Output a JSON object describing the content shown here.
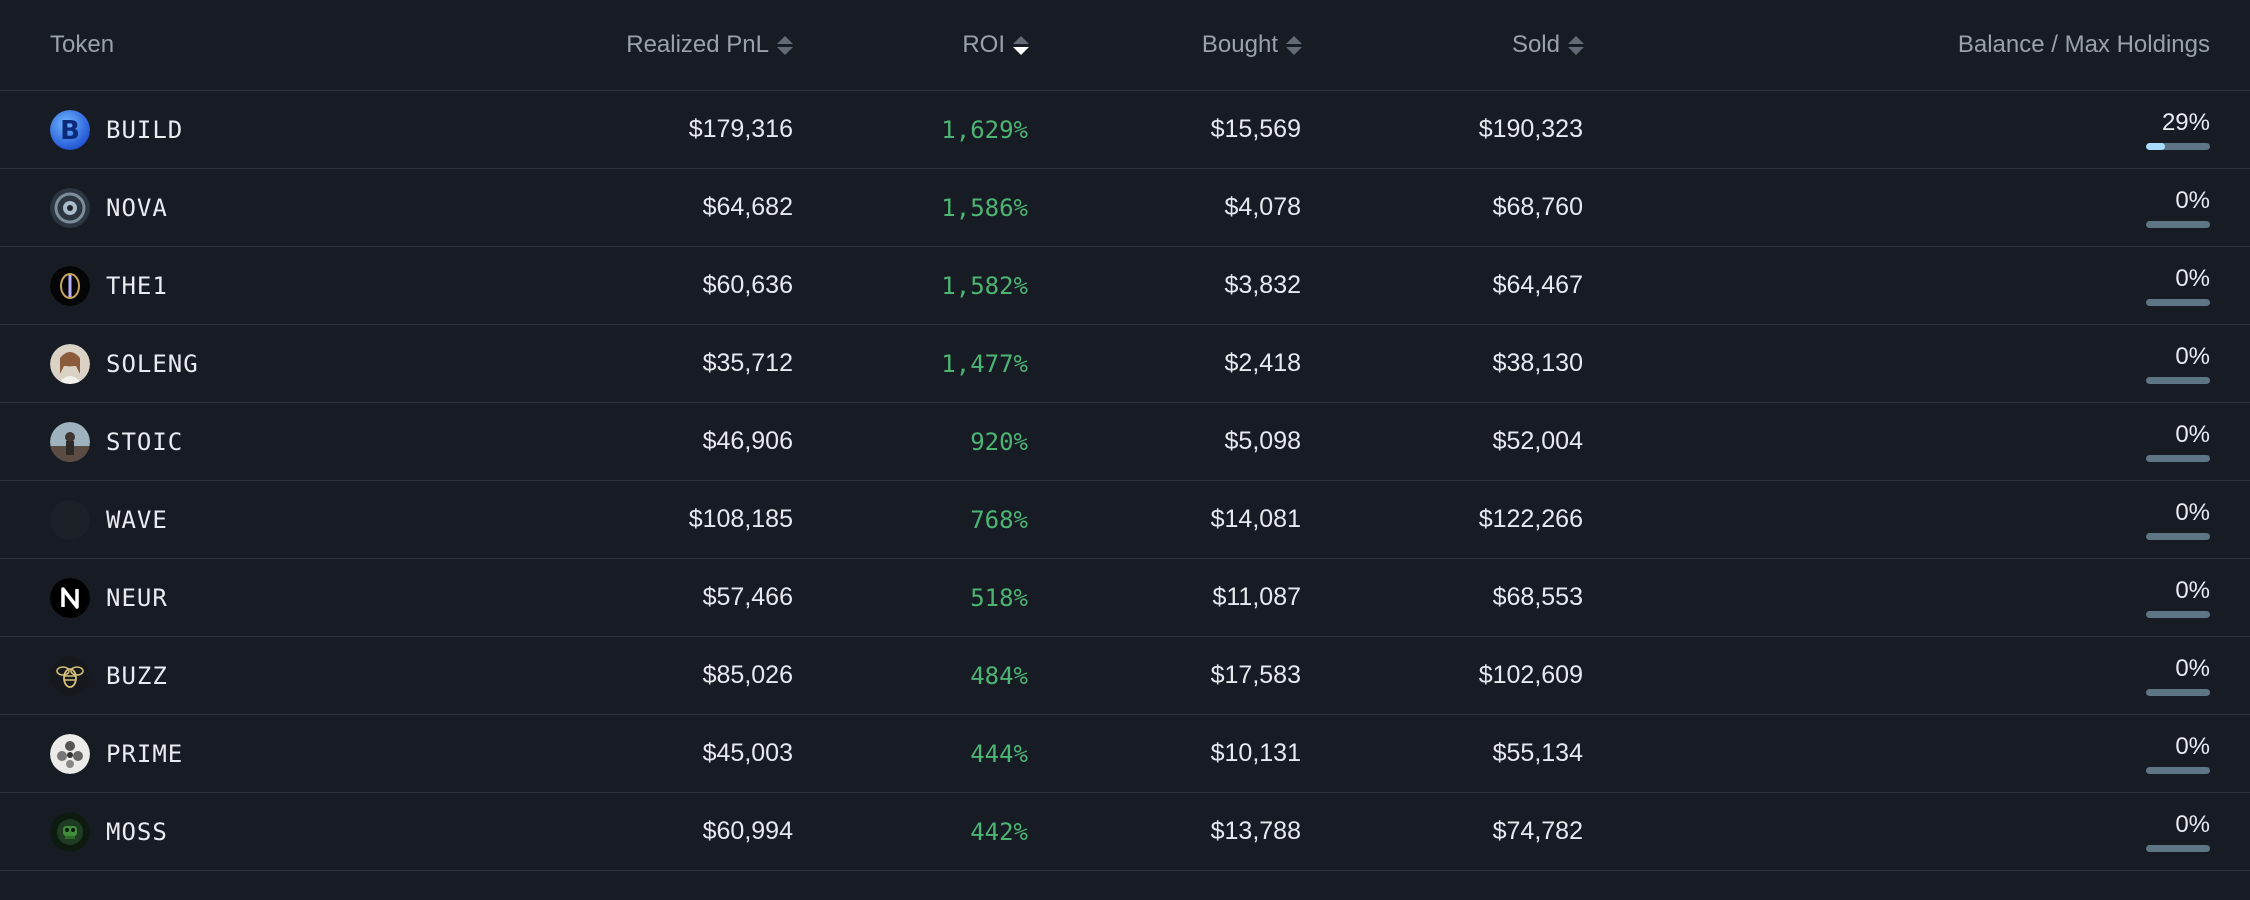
{
  "headers": {
    "token": "Token",
    "pnl": "Realized PnL",
    "roi": "ROI",
    "bought": "Bought",
    "sold": "Sold",
    "balance": "Balance / Max Holdings"
  },
  "sort": {
    "column": "roi",
    "direction": "desc"
  },
  "rows": [
    {
      "token": "BUILD",
      "icon": "build-logo-icon",
      "pnl": "$179,316",
      "roi": "1,629%",
      "bought": "$15,569",
      "sold": "$190,323",
      "balance_pct": "29%",
      "balance_fraction": 0.29
    },
    {
      "token": "NOVA",
      "icon": "nova-logo-icon",
      "pnl": "$64,682",
      "roi": "1,586%",
      "bought": "$4,078",
      "sold": "$68,760",
      "balance_pct": "0%",
      "balance_fraction": 0
    },
    {
      "token": "THE1",
      "icon": "the1-logo-icon",
      "pnl": "$60,636",
      "roi": "1,582%",
      "bought": "$3,832",
      "sold": "$64,467",
      "balance_pct": "0%",
      "balance_fraction": 0
    },
    {
      "token": "SOLENG",
      "icon": "soleng-avatar-icon",
      "pnl": "$35,712",
      "roi": "1,477%",
      "bought": "$2,418",
      "sold": "$38,130",
      "balance_pct": "0%",
      "balance_fraction": 0
    },
    {
      "token": "STOIC",
      "icon": "stoic-avatar-icon",
      "pnl": "$46,906",
      "roi": "920%",
      "bought": "$5,098",
      "sold": "$52,004",
      "balance_pct": "0%",
      "balance_fraction": 0
    },
    {
      "token": "WAVE",
      "icon": "wave-logo-icon",
      "pnl": "$108,185",
      "roi": "768%",
      "bought": "$14,081",
      "sold": "$122,266",
      "balance_pct": "0%",
      "balance_fraction": 0
    },
    {
      "token": "NEUR",
      "icon": "neur-logo-icon",
      "pnl": "$57,466",
      "roi": "518%",
      "bought": "$11,087",
      "sold": "$68,553",
      "balance_pct": "0%",
      "balance_fraction": 0
    },
    {
      "token": "BUZZ",
      "icon": "buzz-bee-icon",
      "pnl": "$85,026",
      "roi": "484%",
      "bought": "$17,583",
      "sold": "$102,609",
      "balance_pct": "0%",
      "balance_fraction": 0
    },
    {
      "token": "PRIME",
      "icon": "prime-logo-icon",
      "pnl": "$45,003",
      "roi": "444%",
      "bought": "$10,131",
      "sold": "$55,134",
      "balance_pct": "0%",
      "balance_fraction": 0
    },
    {
      "token": "MOSS",
      "icon": "moss-logo-icon",
      "pnl": "$60,994",
      "roi": "442%",
      "bought": "$13,788",
      "sold": "$74,782",
      "balance_pct": "0%",
      "balance_fraction": 0
    }
  ],
  "colors": {
    "background": "#171c24",
    "roi_positive": "#4cb573",
    "bar_track": "#5d7585",
    "bar_fill": "#a8dcff"
  }
}
